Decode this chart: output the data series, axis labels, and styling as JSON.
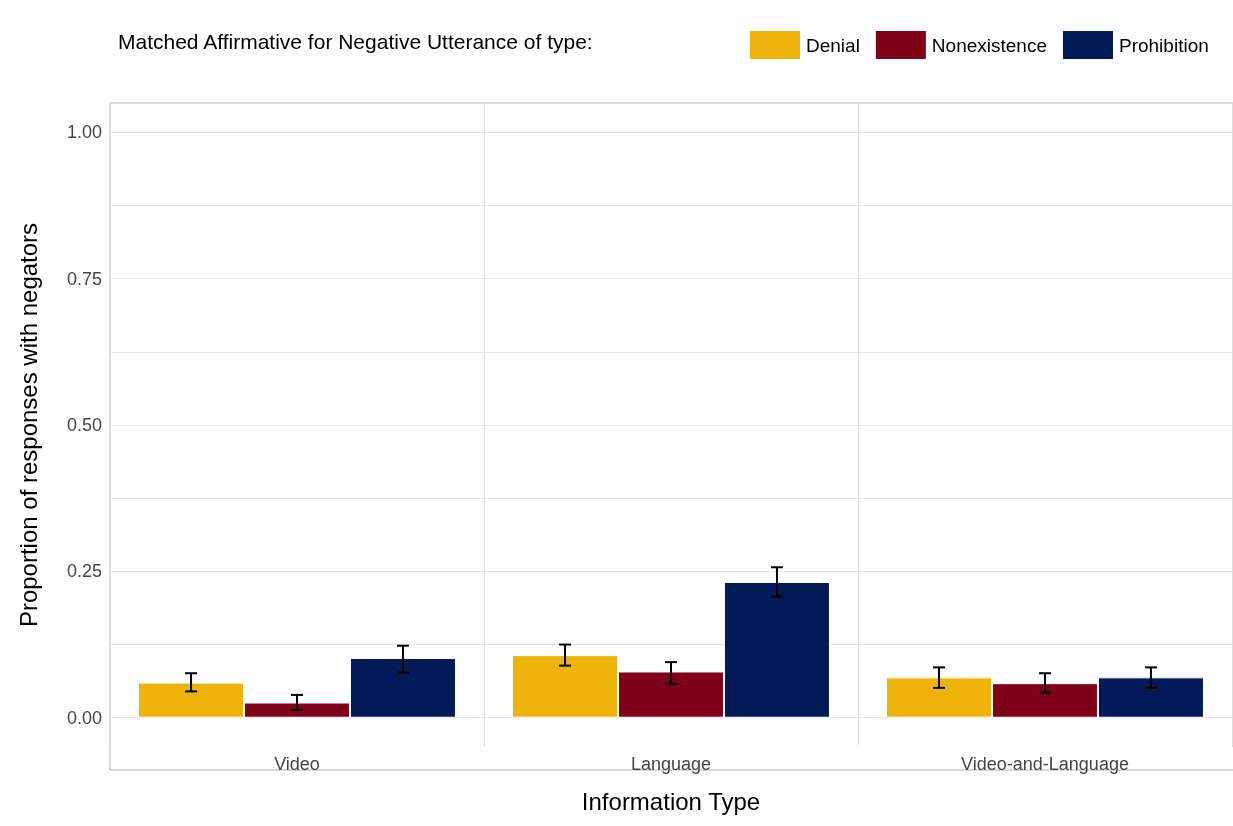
{
  "chart_data": {
    "type": "bar",
    "legend_title": "Matched Affirmative for Negative Utterance of type:",
    "xlabel": "Information Type",
    "ylabel": "Proportion of responses with negators",
    "categories": [
      "Video",
      "Language",
      "Video-and-Language"
    ],
    "series": [
      {
        "name": "Denial",
        "color": "#eeb40c",
        "values": [
          0.06,
          0.107,
          0.069
        ],
        "errors": [
          [
            0.045,
            0.076
          ],
          [
            0.089,
            0.125
          ],
          [
            0.051,
            0.086
          ]
        ]
      },
      {
        "name": "Nonexistence",
        "color": "#7f0019",
        "values": [
          0.026,
          0.079,
          0.059
        ],
        "errors": [
          [
            0.013,
            0.039
          ],
          [
            0.058,
            0.095
          ],
          [
            0.043,
            0.076
          ]
        ]
      },
      {
        "name": "Prohibition",
        "color": "#041a58",
        "values": [
          0.102,
          0.232,
          0.069
        ],
        "errors": [
          [
            0.077,
            0.123
          ],
          [
            0.207,
            0.257
          ],
          [
            0.051,
            0.086
          ]
        ]
      }
    ],
    "ylim": [
      -0.05,
      1.05
    ],
    "yticks": [
      {
        "value": 0,
        "label": "0.00"
      },
      {
        "value": 0.125,
        "label": null
      },
      {
        "value": 0.25,
        "label": "0.25"
      },
      {
        "value": 0.375,
        "label": null
      },
      {
        "value": 0.5,
        "label": "0.50"
      },
      {
        "value": 0.625,
        "label": null
      },
      {
        "value": 0.75,
        "label": "0.75"
      },
      {
        "value": 0.875,
        "label": null
      },
      {
        "value": 1,
        "label": "1.00"
      }
    ],
    "grid": true,
    "legend": "top"
  }
}
